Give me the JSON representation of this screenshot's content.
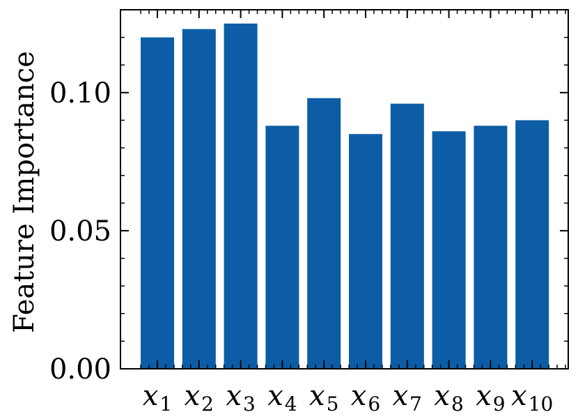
{
  "chart_data": {
    "type": "bar",
    "categories": [
      {
        "base": "x",
        "sub": "1"
      },
      {
        "base": "x",
        "sub": "2"
      },
      {
        "base": "x",
        "sub": "3"
      },
      {
        "base": "x",
        "sub": "4"
      },
      {
        "base": "x",
        "sub": "5"
      },
      {
        "base": "x",
        "sub": "6"
      },
      {
        "base": "x",
        "sub": "7"
      },
      {
        "base": "x",
        "sub": "8"
      },
      {
        "base": "x",
        "sub": "9"
      },
      {
        "base": "x",
        "sub": "10"
      }
    ],
    "values": [
      0.12,
      0.123,
      0.125,
      0.088,
      0.098,
      0.085,
      0.096,
      0.086,
      0.088,
      0.09
    ],
    "ylabel": "Feature Importance",
    "xlabel": "",
    "title": "",
    "ylim": [
      0,
      0.13
    ],
    "yticks": [
      0.0,
      0.05,
      0.1
    ],
    "ytick_labels": [
      "0.00",
      "0.05",
      "0.10"
    ],
    "grid": false,
    "bar_color": "#0C5DA5"
  }
}
